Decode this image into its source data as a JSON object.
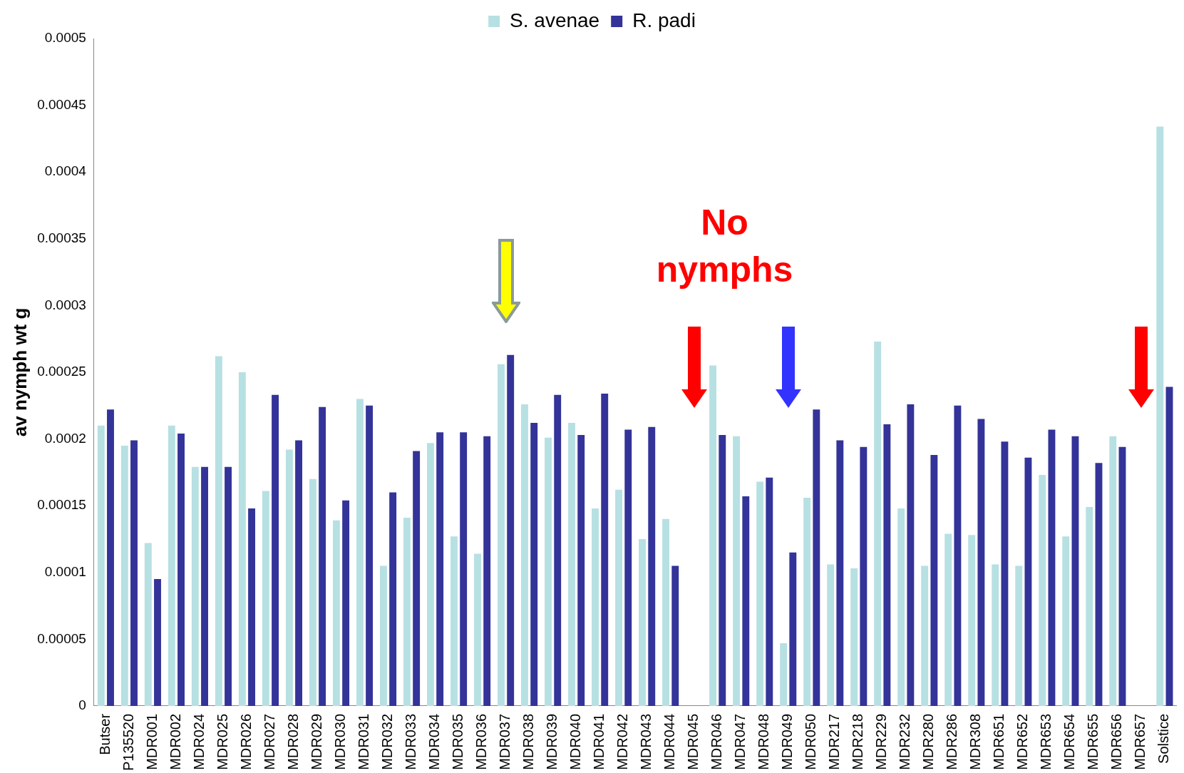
{
  "chart_data": {
    "type": "bar",
    "ylabel": "av nymph wt g",
    "categories": [
      "Butser",
      "P135520",
      "MDR001",
      "MDR002",
      "MDR024",
      "MDR025",
      "MDR026",
      "MDR027",
      "MDR028",
      "MDR029",
      "MDR030",
      "MDR031",
      "MDR032",
      "MDR033",
      "MDR034",
      "MDR035",
      "MDR036",
      "MDR037",
      "MDR038",
      "MDR039",
      "MDR040",
      "MDR041",
      "MDR042",
      "MDR043",
      "MDR044",
      "MDR045",
      "MDR046",
      "MDR047",
      "MDR048",
      "MDR049",
      "MDR050",
      "MDR217",
      "MDR218",
      "MDR229",
      "MDR232",
      "MDR280",
      "MDR286",
      "MDR308",
      "MDR651",
      "MDR652",
      "MDR653",
      "MDR654",
      "MDR655",
      "MDR656",
      "MDR657",
      "Solstice"
    ],
    "series": [
      {
        "name": "S. avenae",
        "color": "#b7e0e3",
        "values": [
          0.00021,
          0.000195,
          0.000122,
          0.00021,
          0.000179,
          0.000262,
          0.00025,
          0.000161,
          0.000192,
          0.00017,
          0.000139,
          0.00023,
          0.000105,
          0.000141,
          0.000197,
          0.000127,
          0.000114,
          0.000256,
          0.000226,
          0.000201,
          0.000212,
          0.000148,
          0.000162,
          0.000125,
          0.00014,
          null,
          0.000255,
          0.000202,
          0.000168,
          4.7e-05,
          0.000156,
          0.000106,
          0.000103,
          0.000273,
          0.000148,
          0.000105,
          0.000129,
          0.000128,
          0.000106,
          0.000105,
          0.000173,
          0.000127,
          0.000149,
          0.000202,
          null,
          0.000434
        ]
      },
      {
        "name": "R. padi",
        "color": "#333399",
        "values": [
          0.000222,
          0.000199,
          9.5e-05,
          0.000204,
          0.000179,
          0.000179,
          0.000148,
          0.000233,
          0.000199,
          0.000224,
          0.000154,
          0.000225,
          0.00016,
          0.000191,
          0.000205,
          0.000205,
          0.000202,
          0.000263,
          0.000212,
          0.000233,
          0.000203,
          0.000234,
          0.000207,
          0.000209,
          0.000105,
          null,
          0.000203,
          0.000157,
          0.000171,
          0.000115,
          0.000222,
          0.000199,
          0.000194,
          0.000211,
          0.000226,
          0.000188,
          0.000225,
          0.000215,
          0.000198,
          0.000186,
          0.000207,
          0.000202,
          0.000182,
          0.000194,
          null,
          0.000239
        ]
      }
    ],
    "ylim": [
      0,
      0.0005
    ],
    "yticks": [
      0,
      {
        "value": 5e-05,
        "label": "0.00005"
      },
      0.0001,
      0.00015,
      0.0002,
      0.00025,
      0.0003,
      0.00035,
      0.0004,
      0.00045,
      0.0005
    ],
    "grid": false,
    "legend": "top",
    "annotations": [
      "No nymphs"
    ]
  }
}
